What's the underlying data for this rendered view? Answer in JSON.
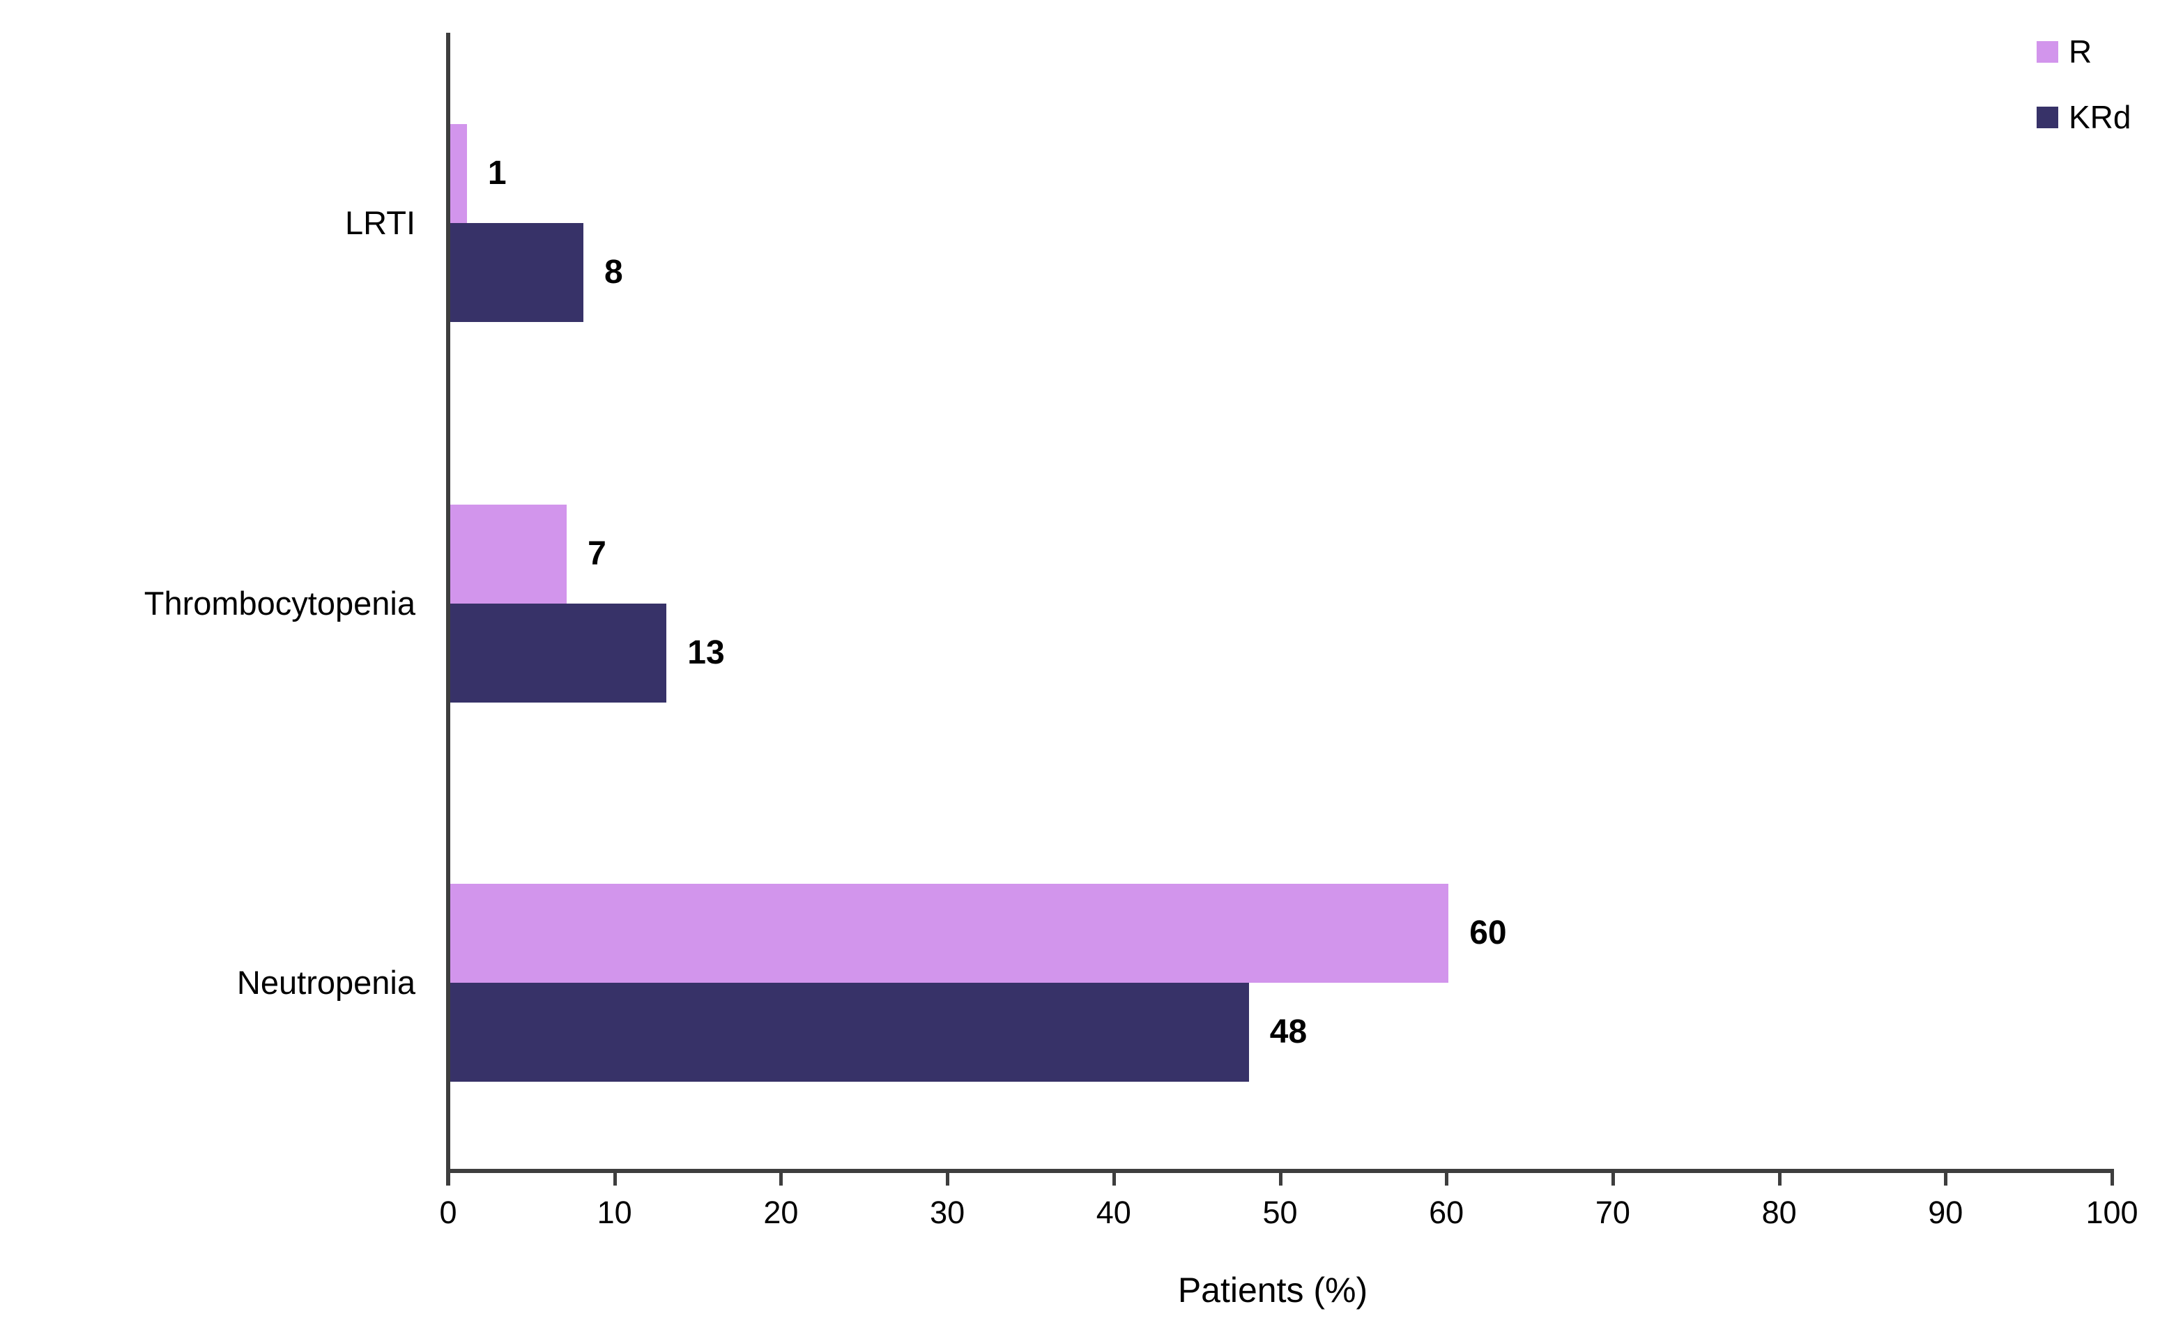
{
  "chart_data": {
    "type": "bar",
    "orientation": "horizontal",
    "title": "",
    "categories": [
      "LRTI",
      "Thrombocytopenia",
      "Neutropenia"
    ],
    "series": [
      {
        "name": "R",
        "color": "#D295EC",
        "values": [
          1,
          7,
          60
        ]
      },
      {
        "name": "KRd",
        "color": "#373268",
        "values": [
          8,
          13,
          48
        ]
      }
    ],
    "xlabel": "Patients (%)",
    "xlim": [
      0,
      100
    ],
    "xticks": [
      0,
      10,
      20,
      30,
      40,
      50,
      60,
      70,
      80,
      90,
      100
    ],
    "grid": false,
    "legend_position": "top-right",
    "value_labels": true,
    "colors": {
      "axis": "#3E3E3E",
      "text": "#000000",
      "background": "#FFFFFF"
    }
  }
}
